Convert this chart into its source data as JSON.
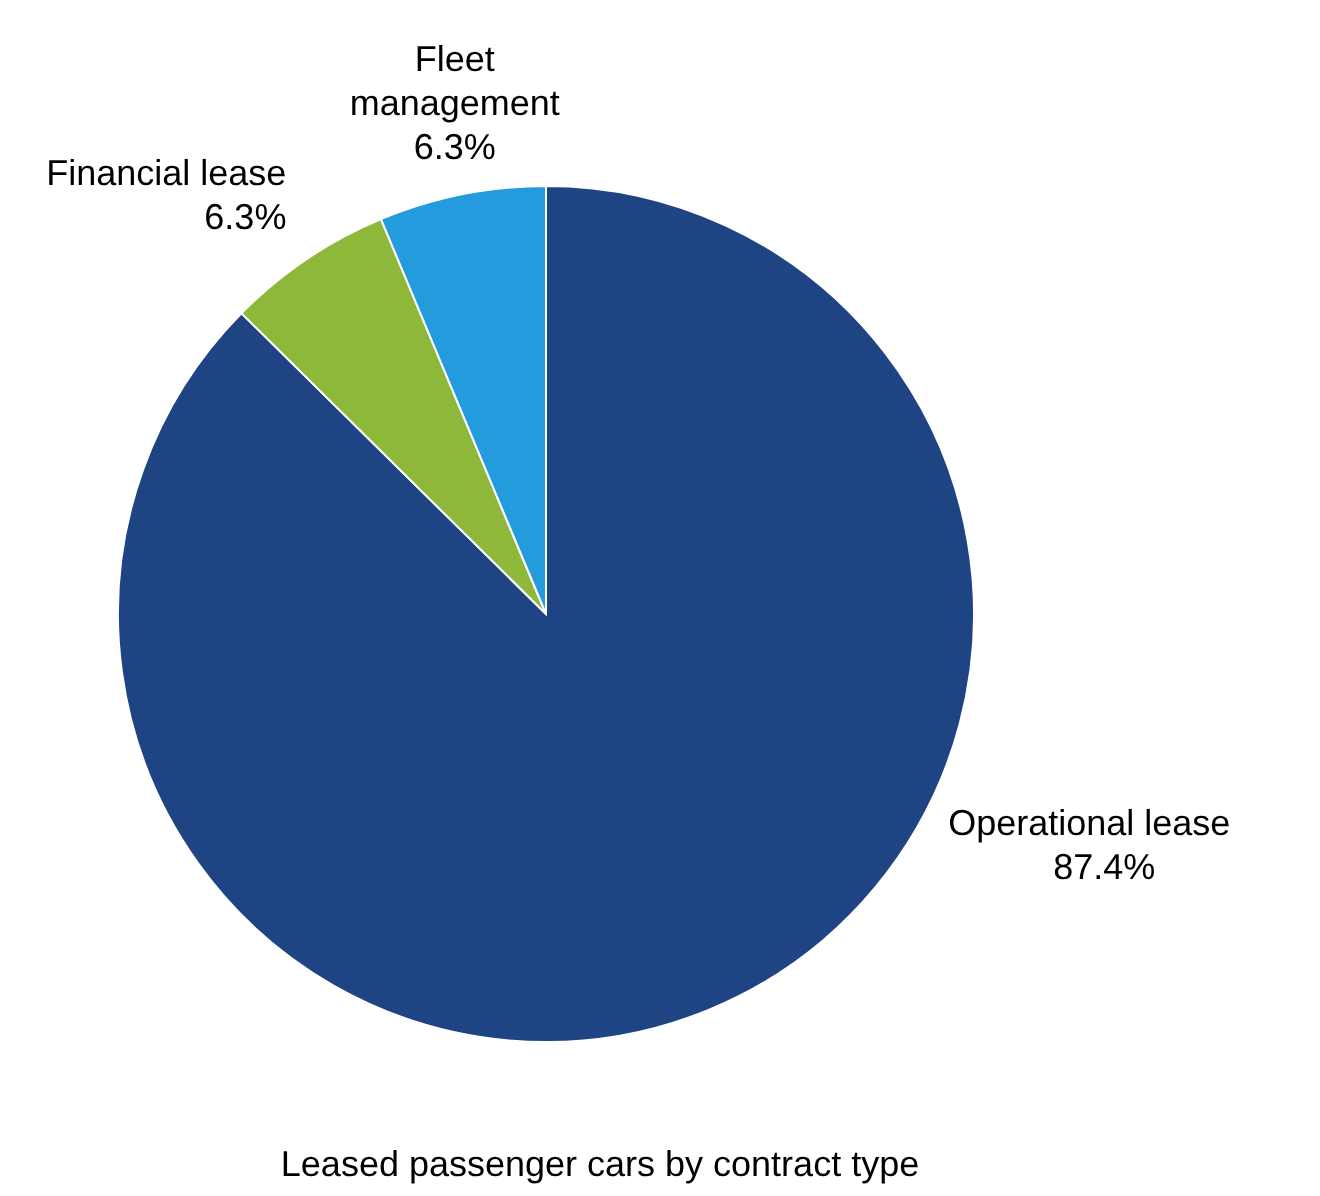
{
  "chart_data": {
    "type": "pie",
    "title": "Leased passenger cars by contract type",
    "categories": [
      "Operational lease",
      "Financial lease",
      "Fleet management"
    ],
    "values": [
      87.4,
      6.3,
      6.3
    ],
    "colors": [
      "#1f4484",
      "#8db83a",
      "#239bdc"
    ],
    "value_labels": [
      "87.4%",
      "6.3%",
      "6.3%"
    ]
  }
}
